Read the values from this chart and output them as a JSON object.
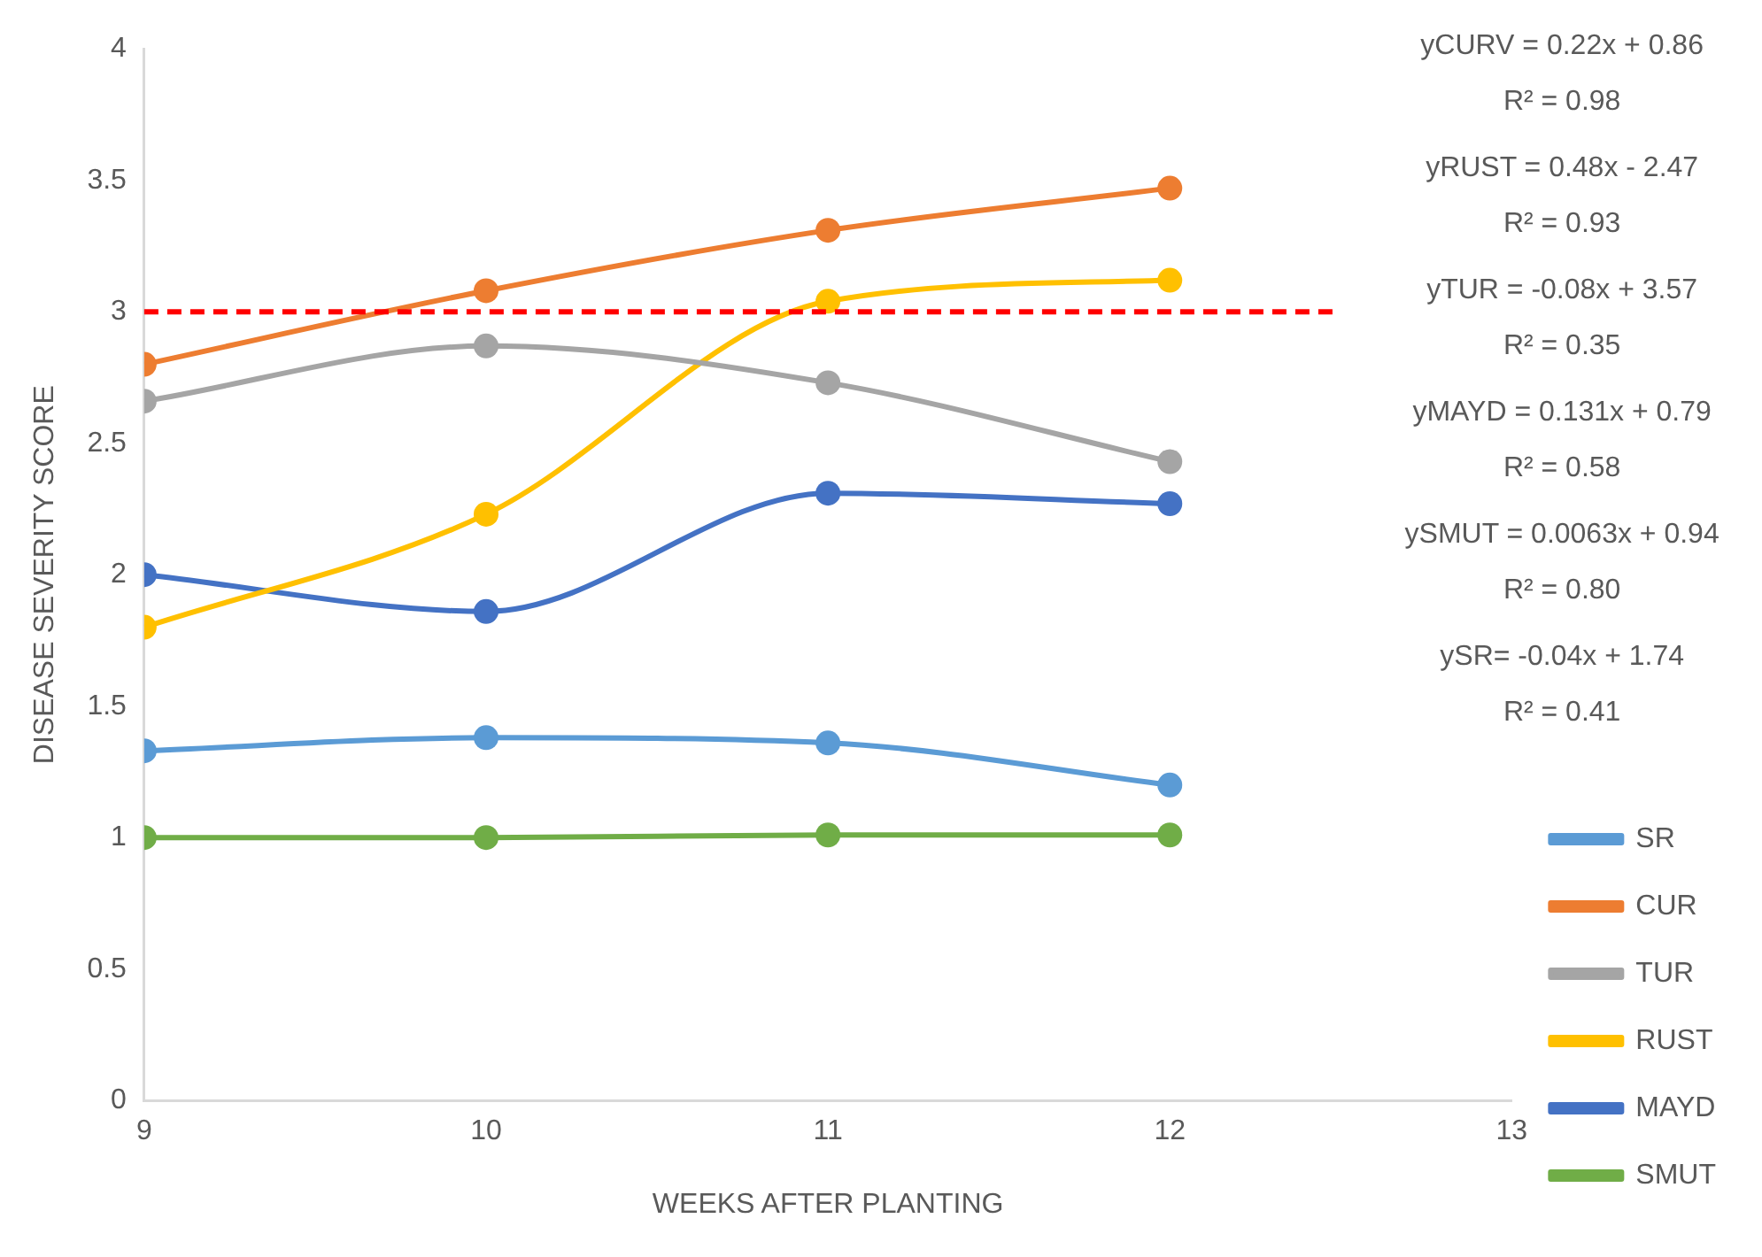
{
  "chart_data": {
    "type": "line",
    "xlabel": "WEEKS AFTER PLANTING",
    "ylabel": "DISEASE SEVERITY SCORE",
    "x": [
      9,
      10,
      11,
      12
    ],
    "series": [
      {
        "name": "SR",
        "color": "#5b9bd5",
        "values": [
          1.33,
          1.38,
          1.36,
          1.2
        ]
      },
      {
        "name": "CUR",
        "color": "#ed7d31",
        "values": [
          2.8,
          3.08,
          3.31,
          3.47
        ]
      },
      {
        "name": "TUR",
        "color": "#a5a5a5",
        "values": [
          2.66,
          2.87,
          2.73,
          2.43
        ]
      },
      {
        "name": "RUST",
        "color": "#ffc000",
        "values": [
          1.8,
          2.23,
          3.04,
          3.12
        ]
      },
      {
        "name": "MAYD",
        "color": "#4472c4",
        "values": [
          2.0,
          1.86,
          2.31,
          2.27
        ]
      },
      {
        "name": "SMUT",
        "color": "#70ad47",
        "values": [
          1.0,
          1.0,
          1.01,
          1.01
        ]
      }
    ],
    "xlim": [
      9,
      13
    ],
    "xticks": [
      9,
      10,
      11,
      12,
      13
    ],
    "ylim": [
      0,
      4
    ],
    "yticks": [
      0,
      0.5,
      1,
      1.5,
      2,
      2.5,
      3,
      3.5,
      4
    ],
    "ref_lines": [
      {
        "axis": "y",
        "value": 3,
        "color": "#ff0000",
        "line_style": "dashed"
      }
    ],
    "annotations": [
      "yCURV = 0.22x + 0.86",
      "R² = 0.98",
      "yRUST = 0.48x - 2.47",
      "R² = 0.93",
      "yTUR = -0.08x + 3.57",
      "R² = 0.35",
      "yMAYD = 0.131x + 0.79",
      "R² = 0.58",
      "ySMUT = 0.0063x + 0.94",
      "R² = 0.80",
      "ySR= -0.04x + 1.74",
      "R² = 0.41"
    ],
    "grid": false,
    "legend": "bottom right",
    "marker": "circle",
    "line_style": "solid"
  }
}
